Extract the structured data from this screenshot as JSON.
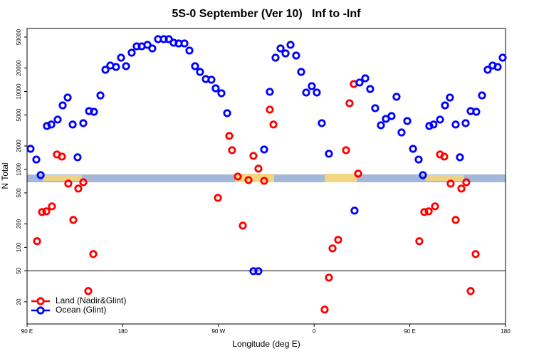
{
  "chart_data": {
    "type": "scatter",
    "title": "5S-0 September (Ver 10)   Inf to -Inf",
    "x_label": "Longitude (deg E)",
    "y_label": "N Total",
    "log_y": true,
    "xlim": [
      90,
      540
    ],
    "ylim": [
      10.4,
      64400
    ],
    "xticks": [
      {
        "value": 90,
        "label": "90 E"
      },
      180,
      {
        "value": 270,
        "label": "90 W"
      },
      {
        "value": 360,
        "label": "0"
      },
      {
        "value": 450,
        "label": "90 E"
      },
      {
        "value": 540,
        "label": "180"
      }
    ],
    "yticks": [
      20,
      50,
      100,
      200,
      500,
      1000,
      2000,
      5000,
      10000,
      20000,
      50000
    ],
    "hline": 50,
    "legend": "bottom-left",
    "series": [
      {
        "name": "Land (Nadir&Glint)",
        "color": "#ff0000",
        "x": [
          99.4,
          104.1,
          108.1,
          113.4,
          118.1,
          122.8,
          128.8,
          133.5,
          138.2,
          142.9,
          147.6,
          152.3,
          269.5,
          280.2,
          282.8,
          288.2,
          292.9,
          298.3,
          302.9,
          307.6,
          313.0,
          318.3,
          321.7,
          369.9,
          373.9,
          377.3,
          382.6,
          390.0,
          393.3,
          397.3,
          401.4,
          458.9,
          463.6,
          467.7,
          473.7,
          478.4,
          482.4,
          488.4,
          493.1,
          498.5,
          503.1,
          507.2,
          511.9
        ],
        "values": [
          120,
          284,
          290,
          336,
          1556,
          1462,
          658,
          225,
          568,
          685,
          27.5,
          82,
          432,
          2690,
          1766,
          811,
          190,
          730,
          1493,
          1023,
          715,
          5860,
          3770,
          15.9,
          40.9,
          97,
          125,
          1766,
          7080,
          12480,
          883,
          120,
          284,
          290,
          336,
          1556,
          1462,
          658,
          225,
          568,
          685,
          27.5,
          82
        ]
      },
      {
        "name": "Ocean (Glint)",
        "color": "#0000ff",
        "x": [
          93.3,
          98.7,
          102.8,
          108.7,
          112.8,
          118.8,
          123.5,
          128.2,
          132.9,
          137.5,
          142.9,
          148.3,
          152.9,
          159.0,
          163.7,
          168.3,
          173.7,
          178.4,
          183.1,
          188.4,
          193.1,
          197.8,
          203.2,
          207.8,
          213.2,
          218.6,
          223.3,
          227.9,
          232.6,
          238.0,
          242.7,
          248.0,
          252.7,
          258.1,
          263.4,
          267.4,
          272.8,
          278.2,
          302.9,
          307.6,
          313.0,
          318.3,
          323.7,
          328.4,
          333.1,
          337.8,
          343.1,
          347.8,
          352.5,
          357.8,
          362.5,
          367.2,
          373.9,
          398.0,
          402.7,
          408.1,
          412.7,
          417.4,
          422.8,
          427.5,
          432.8,
          437.5,
          442.2,
          447.6,
          453.0,
          458.3,
          462.3,
          468.3,
          472.3,
          478.4,
          483.1,
          487.7,
          493.1,
          497.1,
          502.5,
          507.2,
          512.5,
          517.9,
          523.2,
          527.9,
          532.6,
          537.3
        ],
        "values": [
          1840,
          1340,
          845,
          3610,
          3770,
          4365,
          6640,
          8370,
          3770,
          1432,
          3926,
          5610,
          5495,
          8913,
          19010,
          21580,
          20650,
          27160,
          21130,
          31480,
          38020,
          38020,
          39720,
          35730,
          46990,
          46990,
          46990,
          42270,
          41400,
          41400,
          33540,
          21130,
          17850,
          14450,
          14160,
          11000,
          9500,
          5270,
          49.5,
          49.5,
          1803,
          9910,
          27160,
          35730,
          30830,
          39720,
          28940,
          17850,
          9700,
          11720,
          9700,
          3926,
          1589,
          296,
          13030,
          14760,
          10770,
          6110,
          3690,
          4456,
          4842,
          8550,
          2985,
          4182,
          1840,
          1340,
          845,
          3610,
          3770,
          4365,
          6640,
          8370,
          3770,
          1432,
          3926,
          5610,
          5495,
          8913,
          19010,
          21580,
          20650,
          27160
        ]
      }
    ]
  }
}
